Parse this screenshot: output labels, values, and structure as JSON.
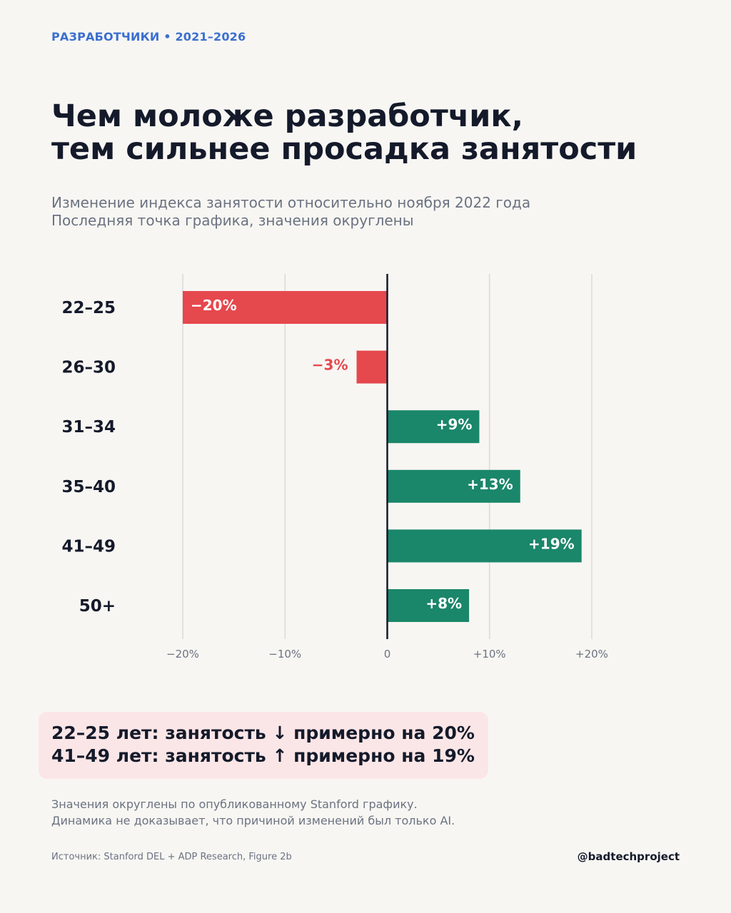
{
  "header": {
    "kicker": "РАЗРАБОТЧИКИ • 2021–2026",
    "title_line1": "Чем моложе разработчик,",
    "title_line2": "тем сильнее просадка занятости",
    "subtitle_line1": "Изменение индекса занятости относительно ноября 2022 года",
    "subtitle_line2": "Последняя точка графика, значения округлены"
  },
  "chart_data": {
    "type": "bar",
    "orientation": "horizontal",
    "categories": [
      "22–25",
      "26–30",
      "31–34",
      "35–40",
      "41–49",
      "50+"
    ],
    "values": [
      -20,
      -3,
      9,
      13,
      19,
      8
    ],
    "data_labels": [
      "−20%",
      "−3%",
      "+9%",
      "+13%",
      "+19%",
      "+8%"
    ],
    "xlim": [
      -20,
      20
    ],
    "xticks": [
      -20,
      -10,
      0,
      10,
      20
    ],
    "xtick_labels": [
      "−20%",
      "−10%",
      "0",
      "+10%",
      "+20%"
    ],
    "grid": true,
    "colors": {
      "negative": "#e5484d",
      "positive": "#1a866a",
      "grid": "#dcdad6",
      "zero_line": "#141a2a",
      "tick_label": "#6b7280",
      "category_label": "#141a2a"
    }
  },
  "callout": {
    "line1": "22–25 лет: занятость ↓ примерно на 20%",
    "line2": "41–49 лет: занятость ↑ примерно на 19%"
  },
  "footer": {
    "note_line1": "Значения округлены по опубликованному Stanford графику.",
    "note_line2": "Динамика не доказывает, что причиной изменений был только AI.",
    "source": "Источник: Stanford DEL + ADP Research, Figure 2b",
    "handle": "@badtechproject"
  }
}
